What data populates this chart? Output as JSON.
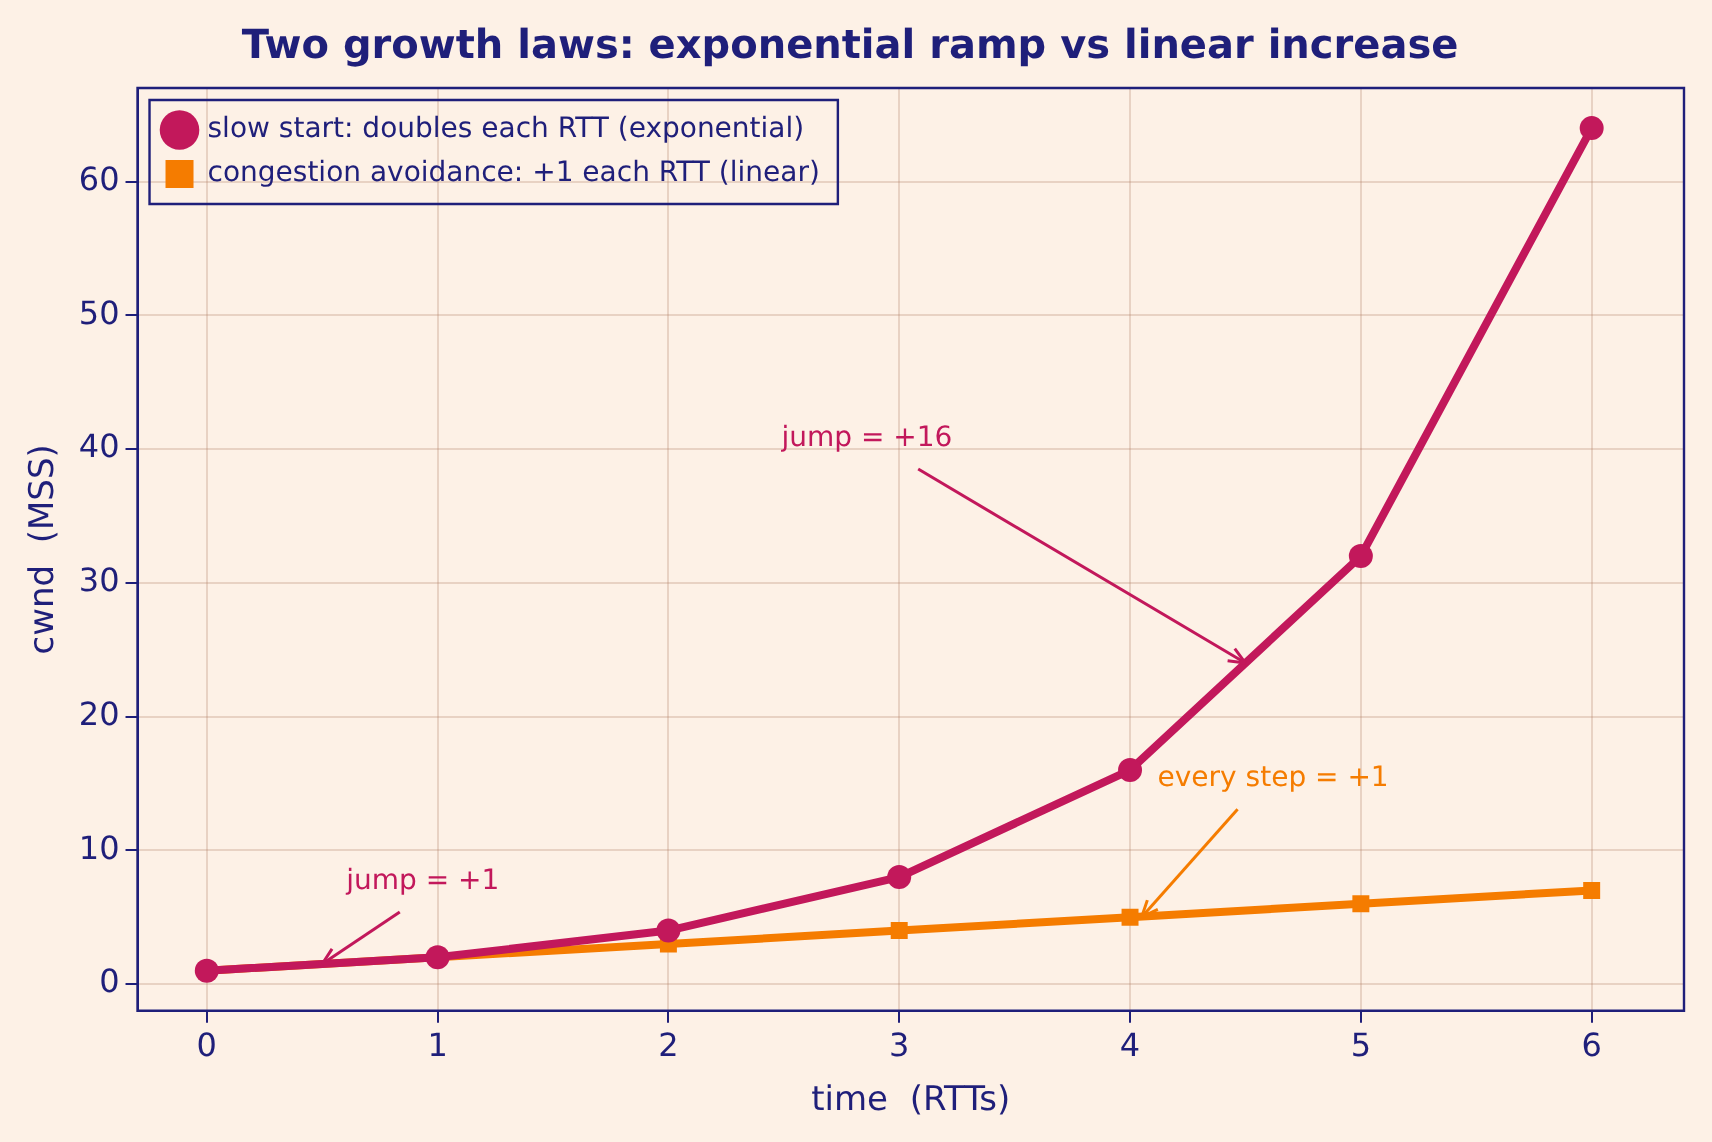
{
  "chart_data": {
    "type": "line",
    "title": "Two growth laws: exponential ramp vs linear increase",
    "xlabel": "time  (RTTs)",
    "ylabel": "cwnd  (MSS)",
    "x": [
      0,
      1,
      2,
      3,
      4,
      5,
      6
    ],
    "series": [
      {
        "name": "slow start: doubles each RTT (exponential)",
        "color": "#c2185b",
        "marker": "circle",
        "values": [
          1,
          2,
          4,
          8,
          16,
          32,
          64
        ]
      },
      {
        "name": "congestion avoidance: +1 each RTT (linear)",
        "color": "#f57c00",
        "marker": "square",
        "values": [
          1,
          2,
          3,
          4,
          5,
          6,
          7
        ]
      }
    ],
    "xlim": [
      -0.3,
      6.4
    ],
    "xticks": [
      0,
      1,
      2,
      3,
      4,
      5,
      6
    ],
    "ylim": [
      -2,
      67
    ],
    "yticks": [
      0,
      10,
      20,
      30,
      40,
      50,
      60
    ],
    "grid": true,
    "legend": "top left",
    "line_style": "solid",
    "annotations": [
      {
        "text": "jump = +1",
        "x": 0.5,
        "y": 1.5
      },
      {
        "text": "jump = +16",
        "x": 4.5,
        "y": 24
      },
      {
        "text": "every step = +1",
        "x": 4.05,
        "y": 5
      }
    ]
  }
}
